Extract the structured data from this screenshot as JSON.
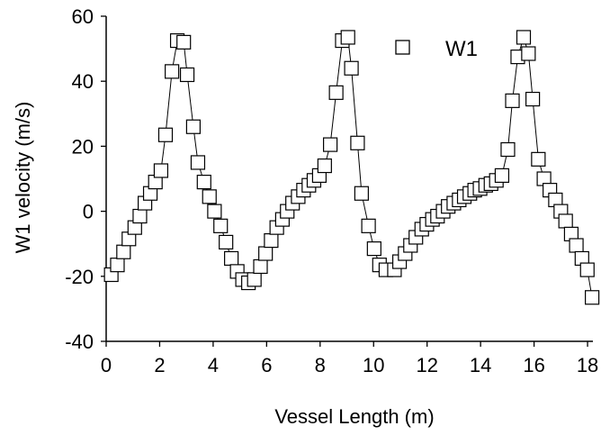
{
  "chart_data": {
    "type": "line",
    "xlabel": "Vessel Length (m)",
    "ylabel": "W1 velocity (m/s)",
    "xlim": [
      0,
      18.2
    ],
    "ylim": [
      -40,
      60
    ],
    "x_ticks": [
      "0",
      "2",
      "4",
      "6",
      "8",
      "10",
      "12",
      "14",
      "16",
      "18"
    ],
    "y_ticks": [
      "60",
      "40",
      "20",
      "0",
      "-20",
      "-40"
    ],
    "grid": false,
    "legend_position": "top-right",
    "marker": "open-square",
    "line_color": "#000000",
    "series": [
      {
        "name": "W1",
        "points": [
          [
            0.19,
            -19.5
          ],
          [
            0.42,
            -16.5
          ],
          [
            0.65,
            -12.5
          ],
          [
            0.85,
            -8.5
          ],
          [
            1.07,
            -5.0
          ],
          [
            1.26,
            -1.5
          ],
          [
            1.45,
            2.5
          ],
          [
            1.65,
            5.5
          ],
          [
            1.84,
            9.0
          ],
          [
            2.05,
            12.5
          ],
          [
            2.22,
            23.5
          ],
          [
            2.46,
            43.0
          ],
          [
            2.66,
            52.5
          ],
          [
            2.9,
            52.0
          ],
          [
            3.03,
            42.0
          ],
          [
            3.26,
            26.0
          ],
          [
            3.43,
            15.0
          ],
          [
            3.66,
            9.0
          ],
          [
            3.86,
            4.5
          ],
          [
            4.05,
            0.0
          ],
          [
            4.28,
            -4.5
          ],
          [
            4.48,
            -9.5
          ],
          [
            4.68,
            -14.5
          ],
          [
            4.9,
            -18.5
          ],
          [
            5.1,
            -21.0
          ],
          [
            5.32,
            -22.0
          ],
          [
            5.54,
            -21.0
          ],
          [
            5.77,
            -17.0
          ],
          [
            5.96,
            -13.0
          ],
          [
            6.17,
            -9.0
          ],
          [
            6.38,
            -5.0
          ],
          [
            6.59,
            -2.5
          ],
          [
            6.77,
            0.0
          ],
          [
            6.97,
            2.5
          ],
          [
            7.18,
            4.5
          ],
          [
            7.38,
            6.5
          ],
          [
            7.58,
            8.0
          ],
          [
            7.77,
            9.5
          ],
          [
            7.97,
            11.0
          ],
          [
            8.17,
            14.0
          ],
          [
            8.38,
            20.5
          ],
          [
            8.6,
            36.5
          ],
          [
            8.83,
            52.5
          ],
          [
            9.04,
            53.5
          ],
          [
            9.17,
            44.0
          ],
          [
            9.4,
            21.0
          ],
          [
            9.55,
            5.5
          ],
          [
            9.81,
            -4.5
          ],
          [
            10.02,
            -11.5
          ],
          [
            10.22,
            -16.5
          ],
          [
            10.46,
            -18.0
          ],
          [
            10.78,
            -18.0
          ],
          [
            10.97,
            -15.5
          ],
          [
            11.18,
            -13.0
          ],
          [
            11.38,
            -10.5
          ],
          [
            11.58,
            -8.0
          ],
          [
            11.8,
            -5.5
          ],
          [
            11.99,
            -4.0
          ],
          [
            12.2,
            -2.5
          ],
          [
            12.39,
            -1.5
          ],
          [
            12.6,
            0.0
          ],
          [
            12.79,
            1.5
          ],
          [
            13.0,
            2.5
          ],
          [
            13.2,
            3.5
          ],
          [
            13.39,
            4.5
          ],
          [
            13.6,
            5.5
          ],
          [
            13.78,
            6.5
          ],
          [
            13.98,
            7.0
          ],
          [
            14.19,
            8.0
          ],
          [
            14.39,
            8.5
          ],
          [
            14.59,
            9.5
          ],
          [
            14.8,
            11.0
          ],
          [
            15.02,
            19.0
          ],
          [
            15.19,
            34.0
          ],
          [
            15.39,
            47.5
          ],
          [
            15.61,
            53.5
          ],
          [
            15.79,
            48.5
          ],
          [
            15.95,
            34.5
          ],
          [
            16.16,
            16.0
          ],
          [
            16.37,
            10.0
          ],
          [
            16.59,
            6.5
          ],
          [
            16.8,
            3.5
          ],
          [
            17.0,
            0.0
          ],
          [
            17.18,
            -3.0
          ],
          [
            17.39,
            -7.0
          ],
          [
            17.58,
            -10.5
          ],
          [
            17.79,
            -14.5
          ],
          [
            17.99,
            -18.0
          ],
          [
            18.17,
            -26.5
          ]
        ]
      }
    ]
  }
}
